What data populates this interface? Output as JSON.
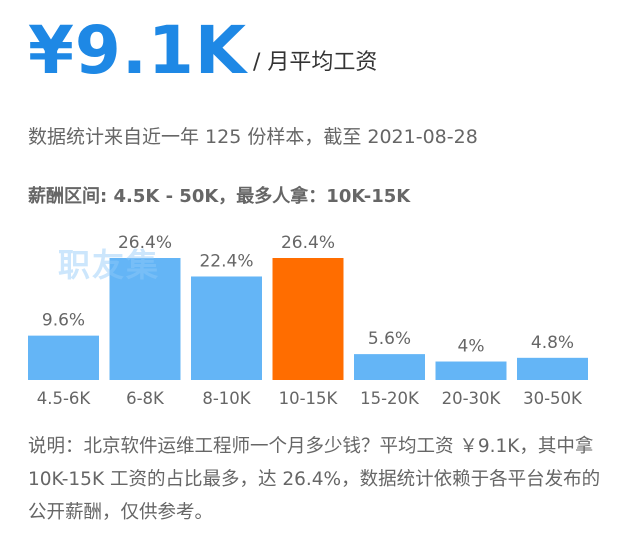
{
  "header": {
    "salary": "¥9.1K",
    "unit": "/ 月平均工资",
    "meta": "数据统计来自近一年 125 份样本，截至 2021-08-28",
    "range_text": "薪酬区间: 4.5K - 50K，最多人拿：10K-15K"
  },
  "watermark": "职友集",
  "colors": {
    "primary": "#1e88e5",
    "bar": "#64b5f6",
    "highlight": "#ff6d00"
  },
  "chart_data": {
    "type": "bar",
    "categories": [
      "4.5-6K",
      "6-8K",
      "8-10K",
      "10-15K",
      "15-20K",
      "20-30K",
      "30-50K"
    ],
    "values": [
      9.6,
      26.4,
      22.4,
      26.4,
      5.6,
      4,
      4.8
    ],
    "labels": [
      "9.6%",
      "26.4%",
      "22.4%",
      "26.4%",
      "5.6%",
      "4%",
      "4.8%"
    ],
    "highlight_index": 3,
    "ylim": [
      0,
      26.4
    ],
    "grid": false
  },
  "note": "说明：北京软件运维工程师一个月多少钱？平均工资 ￥9.1K，其中拿 10K-15K 工资的占比最多，达 26.4%，数据统计依赖于各平台发布的公开薪酬，仅供参考。"
}
